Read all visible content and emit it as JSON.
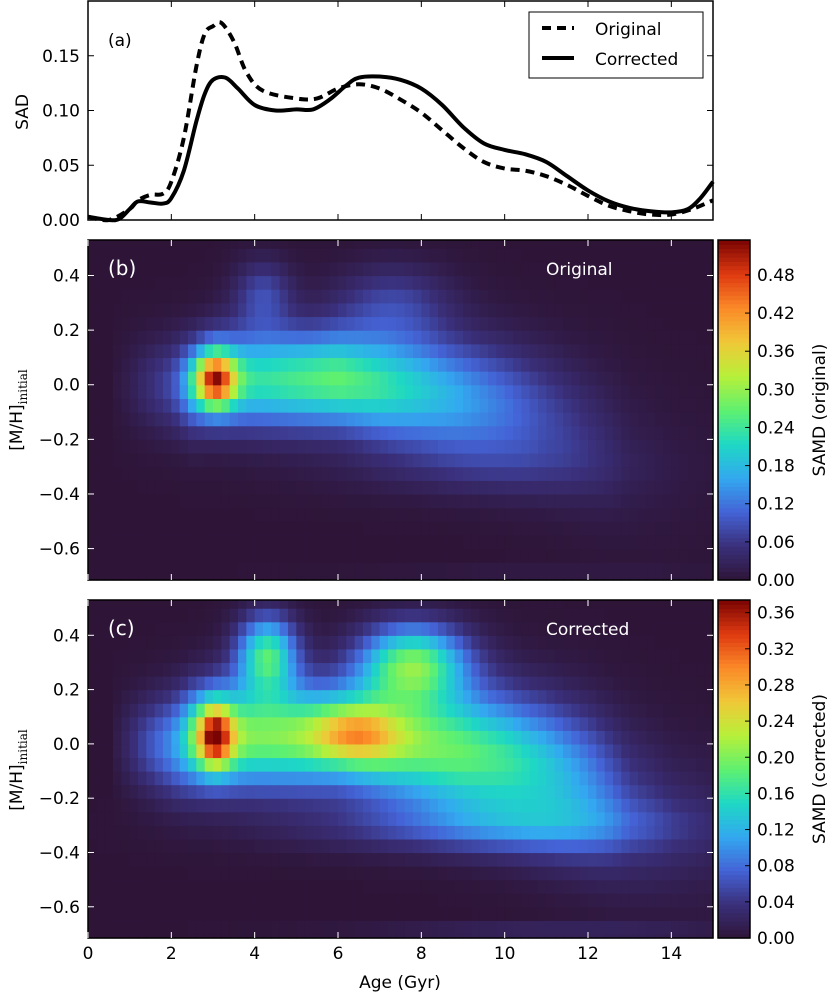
{
  "chart_data": [
    {
      "type": "line",
      "panel_label": "(a)",
      "xlabel": "",
      "ylabel": "SAD",
      "xlim": [
        0,
        15
      ],
      "ylim": [
        0,
        0.2
      ],
      "xticks": [
        0,
        2,
        4,
        6,
        8,
        10,
        12,
        14
      ],
      "yticks": [
        "0.00",
        "0.05",
        "0.10",
        "0.15"
      ],
      "legend_position": "top-right",
      "series": [
        {
          "name": "Original",
          "style": "dashed",
          "x": [
            0,
            0.5,
            1,
            1.2,
            1.5,
            1.8,
            2,
            2.3,
            2.6,
            2.8,
            3.0,
            3.2,
            3.5,
            3.8,
            4.2,
            5,
            5.5,
            6,
            6.5,
            7,
            7.5,
            8,
            8.5,
            9,
            9.5,
            10,
            10.5,
            11,
            11.5,
            12,
            12.5,
            13,
            13.5,
            14,
            14.5,
            15
          ],
          "y": [
            0.003,
            0.0,
            0.01,
            0.018,
            0.023,
            0.024,
            0.035,
            0.075,
            0.14,
            0.17,
            0.177,
            0.18,
            0.163,
            0.135,
            0.118,
            0.111,
            0.111,
            0.12,
            0.124,
            0.12,
            0.11,
            0.098,
            0.082,
            0.066,
            0.053,
            0.047,
            0.045,
            0.04,
            0.032,
            0.022,
            0.013,
            0.008,
            0.005,
            0.005,
            0.01,
            0.018
          ]
        },
        {
          "name": "Corrected",
          "style": "solid",
          "x": [
            0,
            0.5,
            0.75,
            1,
            1.2,
            1.5,
            1.8,
            2,
            2.3,
            2.6,
            2.8,
            3.0,
            3.3,
            3.6,
            4.0,
            4.5,
            5,
            5.4,
            5.8,
            6.2,
            6.5,
            7.0,
            7.5,
            8.0,
            8.5,
            9,
            9.5,
            10,
            10.5,
            11,
            11.5,
            12,
            12.5,
            13,
            13.5,
            14,
            14.4,
            14.7,
            15
          ],
          "y": [
            0.003,
            0.0,
            0.001,
            0.01,
            0.017,
            0.016,
            0.015,
            0.02,
            0.045,
            0.09,
            0.115,
            0.128,
            0.13,
            0.12,
            0.105,
            0.1,
            0.101,
            0.101,
            0.11,
            0.123,
            0.13,
            0.131,
            0.128,
            0.12,
            0.105,
            0.085,
            0.07,
            0.064,
            0.06,
            0.053,
            0.04,
            0.027,
            0.017,
            0.011,
            0.008,
            0.007,
            0.01,
            0.02,
            0.035
          ]
        }
      ]
    },
    {
      "type": "heatmap",
      "panel_label": "(b)",
      "annotation": "Original",
      "ylabel_main": "[M/H]",
      "ylabel_sub": "initial",
      "xlim": [
        0,
        15
      ],
      "ylim": [
        -0.715,
        0.53
      ],
      "xticks": [
        0,
        2,
        4,
        6,
        8,
        10,
        12,
        14
      ],
      "yticks": [
        "0.4",
        "0.2",
        "0.0",
        "−0.2",
        "−0.4",
        "−0.6"
      ],
      "ytick_values": [
        0.4,
        0.2,
        0.0,
        -0.2,
        -0.4,
        -0.6
      ],
      "cell": [
        0.2,
        0.05
      ],
      "colorbar_label": "SAMD (original)",
      "vlim": [
        0,
        0.535
      ],
      "colorbar_ticks": [
        "0.00",
        "0.06",
        "0.12",
        "0.18",
        "0.24",
        "0.30",
        "0.36",
        "0.42",
        "0.48"
      ],
      "ridge": {
        "age": [
          0.5,
          1,
          2,
          2.5,
          3,
          4,
          5,
          6,
          7,
          8,
          9,
          10,
          11,
          12,
          13,
          14,
          15
        ],
        "amp": [
          0.0,
          0.02,
          0.08,
          0.15,
          0.2,
          0.23,
          0.25,
          0.27,
          0.24,
          0.2,
          0.16,
          0.12,
          0.08,
          0.05,
          0.02,
          0.01,
          0.005
        ],
        "center": [
          0,
          0,
          0,
          0,
          0.02,
          0.02,
          0.02,
          0.02,
          0,
          -0.02,
          -0.05,
          -0.08,
          -0.12,
          -0.18,
          -0.25,
          -0.3,
          -0.3
        ],
        "sigma": [
          0.12,
          0.12,
          0.12,
          0.12,
          0.12,
          0.12,
          0.12,
          0.12,
          0.13,
          0.14,
          0.15,
          0.16,
          0.17,
          0.18,
          0.2,
          0.2,
          0.2
        ]
      },
      "blobs": [
        {
          "age": 3.05,
          "mh": 0.02,
          "s_age": 0.35,
          "s_mh": 0.07,
          "amp": 0.33
        },
        {
          "age": 4.2,
          "mh": 0.33,
          "s_age": 0.5,
          "s_mh": 0.09,
          "amp": 0.08
        },
        {
          "age": 7.3,
          "mh": 0.3,
          "s_age": 1.0,
          "s_mh": 0.1,
          "amp": 0.07
        },
        {
          "age": 9.0,
          "mh": -0.3,
          "s_age": 2.5,
          "s_mh": 0.08,
          "amp": 0.03
        },
        {
          "age": 11.0,
          "mh": -0.7,
          "s_age": 3.0,
          "s_mh": 0.02,
          "amp": 0.02
        }
      ]
    },
    {
      "type": "heatmap",
      "panel_label": "(c)",
      "annotation": "Corrected",
      "xlabel": "Age (Gyr)",
      "ylabel_main": "[M/H]",
      "ylabel_sub": "initial",
      "xlim": [
        0,
        15
      ],
      "ylim": [
        -0.715,
        0.53
      ],
      "xticks": [
        0,
        2,
        4,
        6,
        8,
        10,
        12,
        14
      ],
      "yticks": [
        "0.4",
        "0.2",
        "0.0",
        "−0.2",
        "−0.4",
        "−0.6"
      ],
      "ytick_values": [
        0.4,
        0.2,
        0.0,
        -0.2,
        -0.4,
        -0.6
      ],
      "cell": [
        0.2,
        0.05
      ],
      "colorbar_label": "SAMD (corrected)",
      "vlim": [
        0,
        0.374
      ],
      "colorbar_ticks": [
        "0.00",
        "0.04",
        "0.08",
        "0.12",
        "0.16",
        "0.20",
        "0.24",
        "0.28",
        "0.32",
        "0.36"
      ],
      "ridge": {
        "age": [
          0.5,
          1,
          2,
          2.5,
          3,
          4,
          5,
          6,
          7,
          8,
          9,
          10,
          11,
          12,
          13,
          14,
          15
        ],
        "amp": [
          0.0,
          0.03,
          0.1,
          0.16,
          0.2,
          0.2,
          0.2,
          0.2,
          0.21,
          0.2,
          0.19,
          0.17,
          0.14,
          0.1,
          0.05,
          0.03,
          0.02
        ],
        "center": [
          0,
          0,
          0,
          0.02,
          0.03,
          0.03,
          0.03,
          0.03,
          0.02,
          0,
          -0.03,
          -0.06,
          -0.1,
          -0.15,
          -0.22,
          -0.28,
          -0.3
        ],
        "sigma": [
          0.12,
          0.12,
          0.13,
          0.13,
          0.13,
          0.13,
          0.13,
          0.13,
          0.14,
          0.15,
          0.16,
          0.17,
          0.18,
          0.19,
          0.2,
          0.2,
          0.2
        ]
      },
      "blobs": [
        {
          "age": 3.05,
          "mh": 0.03,
          "s_age": 0.3,
          "s_mh": 0.08,
          "amp": 0.2
        },
        {
          "age": 6.4,
          "mh": 0.04,
          "s_age": 0.7,
          "s_mh": 0.07,
          "amp": 0.1
        },
        {
          "age": 4.3,
          "mh": 0.33,
          "s_age": 0.5,
          "s_mh": 0.1,
          "amp": 0.17
        },
        {
          "age": 7.8,
          "mh": 0.3,
          "s_age": 0.9,
          "s_mh": 0.1,
          "amp": 0.18
        },
        {
          "age": 9.5,
          "mh": -0.3,
          "s_age": 3.0,
          "s_mh": 0.07,
          "amp": 0.06
        },
        {
          "age": 11.0,
          "mh": -0.7,
          "s_age": 3.0,
          "s_mh": 0.02,
          "amp": 0.04
        }
      ]
    }
  ],
  "colors": {
    "colormap": [
      "#2e1538",
      "#3a2f7a",
      "#4463d6",
      "#33a8f0",
      "#1ed8c4",
      "#5ef070",
      "#b7f03a",
      "#f0c838",
      "#fb8a28",
      "#df3a10",
      "#7a0403"
    ],
    "line": "#000000",
    "annotation": "#ffffff"
  }
}
